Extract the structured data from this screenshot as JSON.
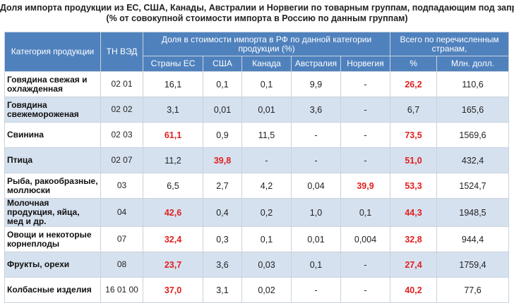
{
  "title": {
    "line1": "Доля импорта продукции из ЕС, США, Канады, Австралии и Норвегии по товарным группам, подпадающим под запрет",
    "line2": "(% от совокупной стоимости импорта в Россию по данным группам)"
  },
  "header": {
    "category": "Категория продукции",
    "tn": "ТН ВЭД",
    "share_group": "Доля в стоимости импорта в РФ по данной категории продукции (%)",
    "total_group": "Всего по перечисленным странам,",
    "columns": [
      "Страны ЕС",
      "США",
      "Канада",
      "Австралия",
      "Норвегия",
      "%",
      "Млн. долл."
    ]
  },
  "accent_color": "#e02020",
  "header_color": "#4f81bd",
  "chart_data": {
    "type": "table",
    "title": "Доля импорта продукции из ЕС, США, Канады, Австралии и Норвегии по товарным группам, подпадающим под запрет",
    "subtitle": "(% от совокупной стоимости импорта в Россию по данным группам)",
    "columns": [
      "Категория продукции",
      "ТН ВЭД",
      "Страны ЕС",
      "США",
      "Канада",
      "Австралия",
      "Норвегия",
      "%",
      "Млн. долл."
    ],
    "rows": [
      {
        "category": "Говядина свежая и охлажденная",
        "code": "02 01",
        "eu": "16,1",
        "eu_hl": false,
        "us": "0,1",
        "us_hl": false,
        "ca": "0,1",
        "au": "9,9",
        "no": "-",
        "no_hl": false,
        "pct": "26,2",
        "pct_hl": true,
        "mln": "110,6"
      },
      {
        "category": "Говядина свежемороженая",
        "code": "02 02",
        "eu": "3,1",
        "eu_hl": false,
        "us": "0,01",
        "us_hl": false,
        "ca": "0,01",
        "au": "3,6",
        "no": "-",
        "no_hl": false,
        "pct": "6,7",
        "pct_hl": false,
        "mln": "165,6"
      },
      {
        "category": "Свинина",
        "code": "02 03",
        "eu": "61,1",
        "eu_hl": true,
        "us": "0,9",
        "us_hl": false,
        "ca": "11,5",
        "au": "-",
        "no": "-",
        "no_hl": false,
        "pct": "73,5",
        "pct_hl": true,
        "mln": "1569,6"
      },
      {
        "category": "Птица",
        "code": "02 07",
        "eu": "11,2",
        "eu_hl": false,
        "us": "39,8",
        "us_hl": true,
        "ca": "-",
        "au": "-",
        "no": "-",
        "no_hl": false,
        "pct": "51,0",
        "pct_hl": true,
        "mln": "432,4"
      },
      {
        "category": "Рыба, ракообразные, моллюски",
        "code": "03",
        "eu": "6,5",
        "eu_hl": false,
        "us": "2,7",
        "us_hl": false,
        "ca": "4,2",
        "au": "0,04",
        "no": "39,9",
        "no_hl": true,
        "pct": "53,3",
        "pct_hl": true,
        "mln": "1524,7"
      },
      {
        "category": "Молочная продукция, яйца, мед и др.",
        "code": "04",
        "eu": "42,6",
        "eu_hl": true,
        "us": "0,4",
        "us_hl": false,
        "ca": "0,2",
        "au": "1,0",
        "no": "0,1",
        "no_hl": false,
        "pct": "44,3",
        "pct_hl": true,
        "mln": "1948,5"
      },
      {
        "category": "Овощи и некоторые корнеплоды",
        "code": "07",
        "eu": "32,4",
        "eu_hl": true,
        "us": "0,3",
        "us_hl": false,
        "ca": "0,1",
        "au": "0,01",
        "no": "0,004",
        "no_hl": false,
        "pct": "32,8",
        "pct_hl": true,
        "mln": "944,4"
      },
      {
        "category": "Фрукты, орехи",
        "code": "08",
        "eu": "23,7",
        "eu_hl": true,
        "us": "3,6",
        "us_hl": false,
        "ca": "0,03",
        "au": "0,1",
        "no": "-",
        "no_hl": false,
        "pct": "27,4",
        "pct_hl": true,
        "mln": "1759,4"
      },
      {
        "category": "Колбасные изделия",
        "code": "16 01 00",
        "eu": "37,0",
        "eu_hl": true,
        "us": "3,1",
        "us_hl": false,
        "ca": "0,02",
        "au": "-",
        "no": "-",
        "no_hl": false,
        "pct": "40,2",
        "pct_hl": true,
        "mln": "77,6"
      }
    ]
  }
}
